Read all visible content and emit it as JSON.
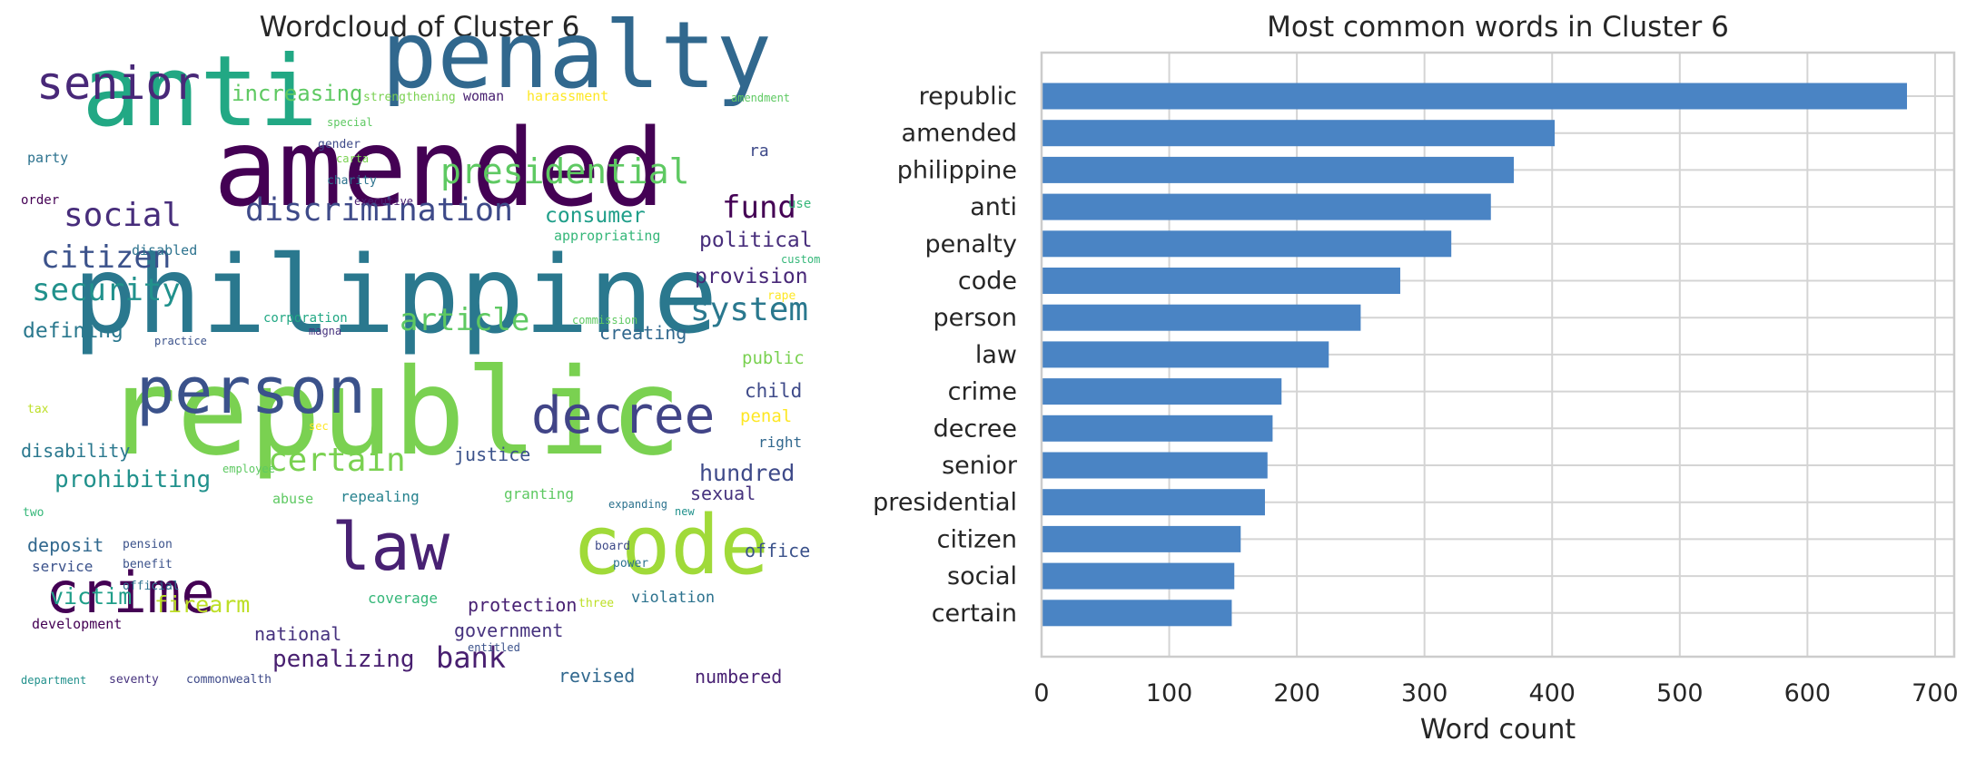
{
  "wordcloud": {
    "title": "Wordcloud of Cluster 6",
    "words": [
      {
        "text": "republic",
        "color": "#7ad151"
      },
      {
        "text": "philippine",
        "color": "#2a788e"
      },
      {
        "text": "amended",
        "color": "#440154"
      },
      {
        "text": "anti",
        "color": "#22a884"
      },
      {
        "text": "penalty",
        "color": "#31688e"
      },
      {
        "text": "code",
        "color": "#a0da39"
      },
      {
        "text": "law",
        "color": "#482173"
      },
      {
        "text": "person",
        "color": "#3b528b"
      },
      {
        "text": "crime",
        "color": "#440154"
      },
      {
        "text": "decree",
        "color": "#414487"
      },
      {
        "text": "senior",
        "color": "#482878"
      },
      {
        "text": "presidential",
        "color": "#5ec962"
      },
      {
        "text": "discrimination",
        "color": "#3e4a89"
      },
      {
        "text": "social",
        "color": "#472d7b"
      },
      {
        "text": "citizen",
        "color": "#3b528b"
      },
      {
        "text": "security",
        "color": "#21918c"
      },
      {
        "text": "certain",
        "color": "#7ad151"
      },
      {
        "text": "article",
        "color": "#5ec962"
      },
      {
        "text": "system",
        "color": "#2a788e"
      },
      {
        "text": "fund",
        "color": "#440154"
      },
      {
        "text": "increasing",
        "color": "#5ec962"
      },
      {
        "text": "prohibiting",
        "color": "#21918c"
      },
      {
        "text": "hundred",
        "color": "#3e4a89"
      },
      {
        "text": "bank",
        "color": "#481f70"
      },
      {
        "text": "victim",
        "color": "#1f9e89"
      },
      {
        "text": "firearm",
        "color": "#bddf26"
      },
      {
        "text": "penalizing",
        "color": "#481f70"
      },
      {
        "text": "provision",
        "color": "#482878"
      },
      {
        "text": "political",
        "color": "#472d7b"
      },
      {
        "text": "consumer",
        "color": "#1f9e89"
      },
      {
        "text": "defining",
        "color": "#2a788e"
      },
      {
        "text": "creating",
        "color": "#31688e"
      },
      {
        "text": "disability",
        "color": "#2a788e"
      },
      {
        "text": "justice",
        "color": "#3b528b"
      },
      {
        "text": "deposit",
        "color": "#31688e"
      },
      {
        "text": "protection",
        "color": "#482173"
      },
      {
        "text": "government",
        "color": "#46327e"
      },
      {
        "text": "national",
        "color": "#46327e"
      },
      {
        "text": "revised",
        "color": "#31688e"
      },
      {
        "text": "numbered",
        "color": "#482173"
      },
      {
        "text": "office",
        "color": "#3b528b"
      },
      {
        "text": "sexual",
        "color": "#46327e"
      },
      {
        "text": "child",
        "color": "#3e4a89"
      },
      {
        "text": "public",
        "color": "#7ad151"
      },
      {
        "text": "penal",
        "color": "#fde725"
      },
      {
        "text": "right",
        "color": "#31688e"
      },
      {
        "text": "service",
        "color": "#3b528b"
      },
      {
        "text": "violation",
        "color": "#2c728e"
      },
      {
        "text": "coverage",
        "color": "#35b779"
      },
      {
        "text": "granting",
        "color": "#5ec962"
      },
      {
        "text": "repealing",
        "color": "#26828e"
      },
      {
        "text": "abuse",
        "color": "#5ec962"
      },
      {
        "text": "development",
        "color": "#440154"
      },
      {
        "text": "appropriating",
        "color": "#35b779"
      },
      {
        "text": "disabled",
        "color": "#2c728e"
      },
      {
        "text": "corporation",
        "color": "#22a884"
      },
      {
        "text": "party",
        "color": "#2c728e"
      },
      {
        "text": "order",
        "color": "#440154"
      },
      {
        "text": "ra",
        "color": "#3e4a89"
      },
      {
        "text": "use",
        "color": "#35b779"
      },
      {
        "text": "woman",
        "color": "#481f70"
      },
      {
        "text": "harassment",
        "color": "#fde725"
      },
      {
        "text": "strengthening",
        "color": "#7ad151"
      },
      {
        "text": "amendment",
        "color": "#5ec962"
      },
      {
        "text": "special",
        "color": "#5ec962"
      },
      {
        "text": "gender",
        "color": "#3e4a89"
      },
      {
        "text": "carta",
        "color": "#7ad151"
      },
      {
        "text": "charity",
        "color": "#2c728e"
      },
      {
        "text": "executive",
        "color": "#481f70"
      },
      {
        "text": "custom",
        "color": "#35b779"
      },
      {
        "text": "rape",
        "color": "#fde725"
      },
      {
        "text": "commission",
        "color": "#5ec962"
      },
      {
        "text": "practice",
        "color": "#3b528b"
      },
      {
        "text": "magna",
        "color": "#46327e"
      },
      {
        "text": "sec",
        "color": "#fde725"
      },
      {
        "text": "tax",
        "color": "#bddf26"
      },
      {
        "text": "employee",
        "color": "#5ec962"
      },
      {
        "text": "two",
        "color": "#35b779"
      },
      {
        "text": "expanding",
        "color": "#2c728e"
      },
      {
        "text": "new",
        "color": "#21918c"
      },
      {
        "text": "pension",
        "color": "#3b528b"
      },
      {
        "text": "benefit",
        "color": "#3b528b"
      },
      {
        "text": "official",
        "color": "#2c728e"
      },
      {
        "text": "board",
        "color": "#3e4a89"
      },
      {
        "text": "power",
        "color": "#2c728e"
      },
      {
        "text": "three",
        "color": "#bddf26"
      },
      {
        "text": "entitled",
        "color": "#3b528b"
      },
      {
        "text": "department",
        "color": "#21918c"
      },
      {
        "text": "seventy",
        "color": "#46327e"
      },
      {
        "text": "commonwealth",
        "color": "#3e4a89"
      }
    ]
  },
  "chart_data": {
    "type": "bar",
    "orientation": "horizontal",
    "title": "Most common words in Cluster 6",
    "xlabel": "Word count",
    "ylabel": "",
    "categories": [
      "republic",
      "amended",
      "philippine",
      "anti",
      "penalty",
      "code",
      "person",
      "law",
      "crime",
      "decree",
      "senior",
      "presidential",
      "citizen",
      "social",
      "certain"
    ],
    "values": [
      678,
      402,
      370,
      352,
      321,
      281,
      250,
      225,
      188,
      181,
      177,
      175,
      156,
      151,
      149
    ],
    "xlim": [
      0,
      715
    ],
    "xticks": [
      0,
      100,
      200,
      300,
      400,
      500,
      600,
      700
    ],
    "grid": true,
    "bar_color": "#4a84c4"
  }
}
